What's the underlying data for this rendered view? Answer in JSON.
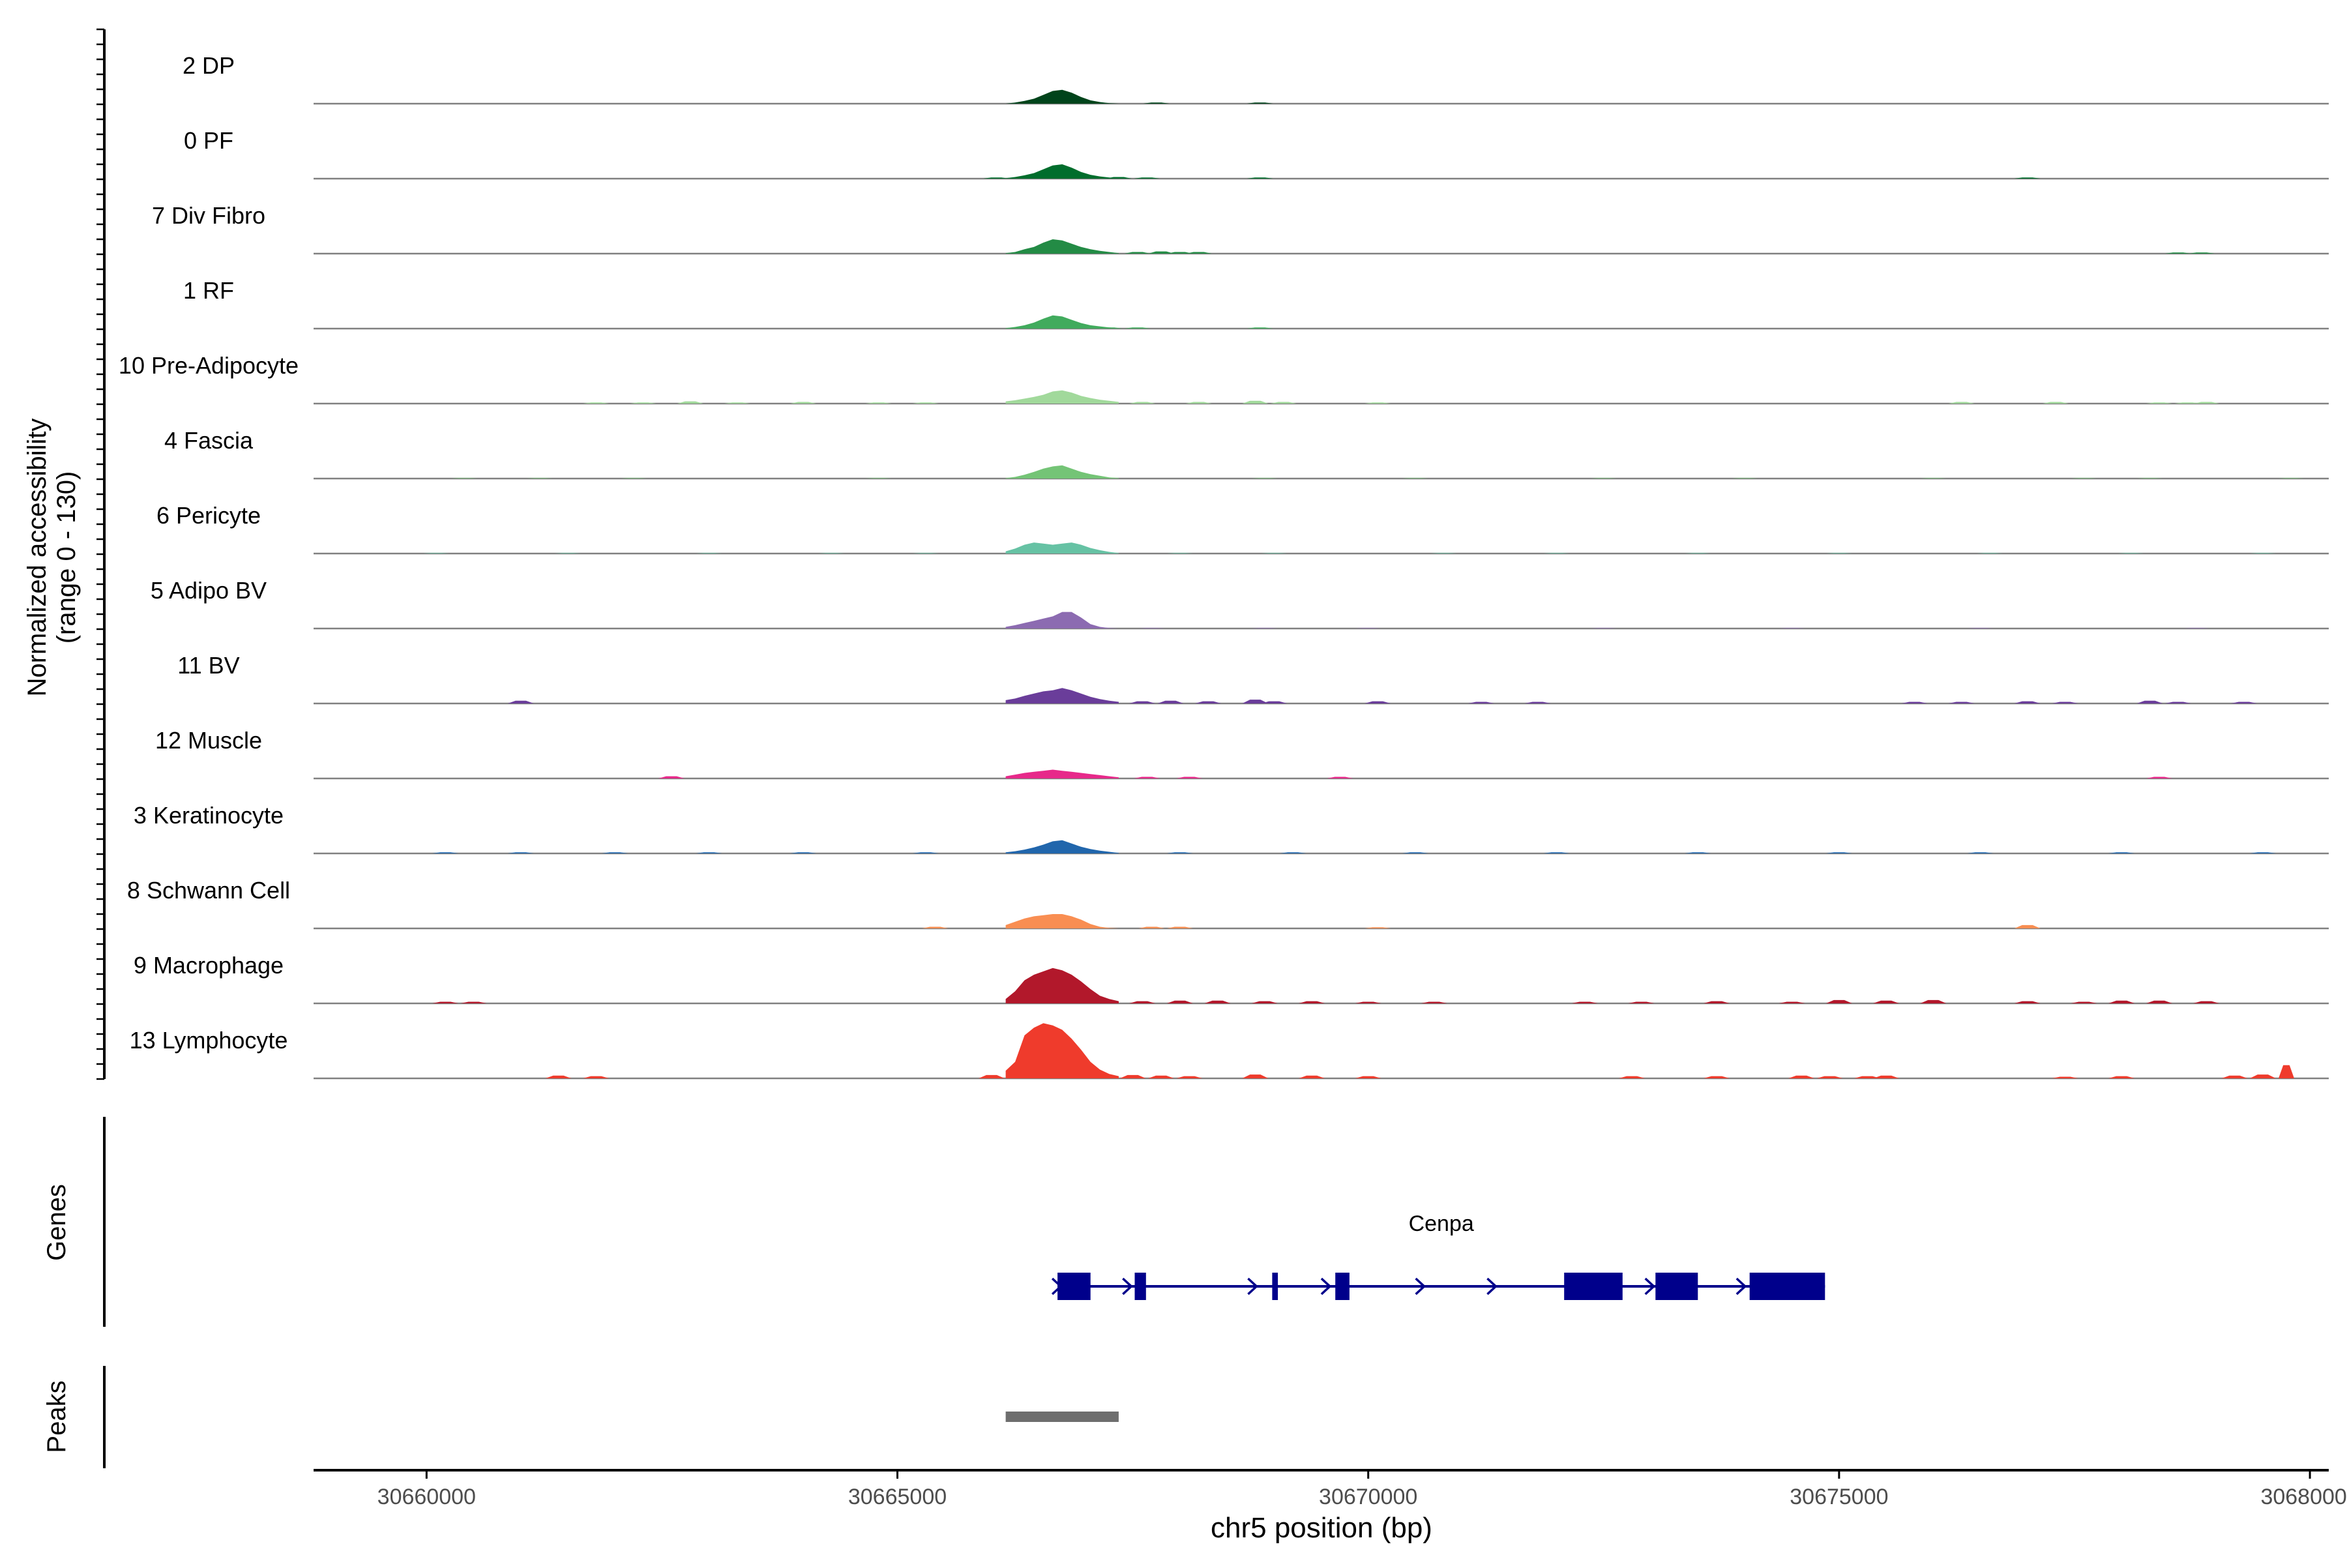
{
  "chart_data": {
    "type": "area",
    "subtype": "genome-coverage-tracks",
    "title": "",
    "xlabel": "chr5 position (bp)",
    "ylabel_line1": "Normalized accessibility",
    "ylabel_line2": "(range 0 - 130)",
    "ylim": [
      0,
      130
    ],
    "xlim": [
      30658800,
      30680200
    ],
    "x_ticks": [
      30660000,
      30665000,
      30670000,
      30675000,
      30680000
    ],
    "x_tick_labels": [
      "30660000",
      "30665000",
      "30670000",
      "30675000",
      "30680000"
    ],
    "grid": false,
    "legend": "none",
    "main_peak_x": [
      30666150,
      30666250,
      30666350,
      30666450,
      30666550,
      30666650,
      30666750,
      30666850,
      30666950,
      30667050,
      30667150,
      30667250,
      30667350
    ],
    "series": [
      {
        "name": "2 DP",
        "color": "#00441b",
        "y": [
          0,
          2,
          5,
          9,
          16,
          23,
          25,
          20,
          12,
          6,
          3,
          1,
          0
        ],
        "minor": [
          [
            30667750,
            2
          ],
          [
            30668850,
            2
          ]
        ]
      },
      {
        "name": "0 PF",
        "color": "#006d2c",
        "y": [
          1,
          3,
          6,
          10,
          17,
          24,
          26,
          20,
          12,
          7,
          4,
          2,
          1
        ],
        "minor": [
          [
            30666050,
            2
          ],
          [
            30667350,
            3
          ],
          [
            30667650,
            2
          ],
          [
            30668850,
            2
          ],
          [
            30677000,
            2
          ]
        ]
      },
      {
        "name": "7 Div Fibro",
        "color": "#238b45",
        "y": [
          1,
          3,
          8,
          12,
          20,
          26,
          24,
          18,
          12,
          8,
          5,
          3,
          1
        ],
        "minor": [
          [
            30667550,
            3
          ],
          [
            30667800,
            4
          ],
          [
            30668000,
            3
          ],
          [
            30668200,
            3
          ],
          [
            30678600,
            2
          ],
          [
            30678850,
            2
          ]
        ]
      },
      {
        "name": "1 RF",
        "color": "#41ab5d",
        "y": [
          1,
          3,
          6,
          11,
          18,
          24,
          22,
          16,
          10,
          6,
          4,
          2,
          1
        ],
        "minor": [
          [
            30667250,
            2
          ],
          [
            30667550,
            2
          ],
          [
            30668850,
            2
          ]
        ]
      },
      {
        "name": "10 Pre-Adipocyte",
        "color": "#a1d99b",
        "y": [
          4,
          6,
          9,
          12,
          16,
          22,
          24,
          20,
          14,
          10,
          7,
          5,
          3
        ],
        "minor": [
          [
            30661800,
            2
          ],
          [
            30662300,
            2
          ],
          [
            30662800,
            4
          ],
          [
            30663300,
            2
          ],
          [
            30664000,
            3
          ],
          [
            30664800,
            2
          ],
          [
            30665300,
            2
          ],
          [
            30667600,
            3
          ],
          [
            30668200,
            3
          ],
          [
            30668800,
            5
          ],
          [
            30669100,
            3
          ],
          [
            30670100,
            2
          ],
          [
            30676300,
            3
          ],
          [
            30677300,
            3
          ],
          [
            30678400,
            2
          ],
          [
            30678700,
            2
          ],
          [
            30678900,
            3
          ]
        ]
      },
      {
        "name": "4 Fascia",
        "color": "#74c476",
        "y": [
          1,
          3,
          7,
          12,
          18,
          22,
          24,
          18,
          12,
          8,
          5,
          2,
          1
        ],
        "minor": [
          [
            30660400,
            1
          ],
          [
            30661200,
            1
          ],
          [
            30662200,
            1
          ],
          [
            30664800,
            1
          ],
          [
            30668900,
            1
          ],
          [
            30670500,
            1
          ],
          [
            30672500,
            1
          ],
          [
            30674000,
            1
          ],
          [
            30676000,
            1
          ],
          [
            30677600,
            1
          ],
          [
            30678300,
            1
          ],
          [
            30679800,
            1
          ]
        ]
      },
      {
        "name": "6 Pericyte",
        "color": "#66c2a4",
        "y": [
          4,
          9,
          16,
          20,
          18,
          16,
          18,
          20,
          16,
          10,
          6,
          3,
          1
        ],
        "minor": [
          [
            30660100,
            1
          ],
          [
            30661500,
            1
          ],
          [
            30663000,
            1
          ],
          [
            30664300,
            1
          ],
          [
            30665300,
            1
          ],
          [
            30668000,
            1
          ],
          [
            30669000,
            1
          ],
          [
            30670800,
            1
          ],
          [
            30672000,
            1
          ],
          [
            30673500,
            1
          ],
          [
            30675000,
            1
          ],
          [
            30676600,
            1
          ],
          [
            30678100,
            1
          ],
          [
            30679500,
            1
          ]
        ]
      },
      {
        "name": "5 Adipo BV",
        "color": "#8c6bb1",
        "y": [
          3,
          6,
          10,
          14,
          18,
          22,
          30,
          30,
          20,
          8,
          3,
          1,
          0
        ],
        "minor": [
          [
            30667700,
            1
          ],
          [
            30668900,
            1
          ],
          [
            30670000,
            1
          ],
          [
            30672500,
            1
          ],
          [
            30674500,
            1
          ],
          [
            30676500,
            1
          ],
          [
            30678800,
            1
          ]
        ]
      },
      {
        "name": "11 BV",
        "color": "#6a3d9a",
        "y": [
          6,
          9,
          14,
          18,
          22,
          24,
          28,
          24,
          18,
          12,
          8,
          5,
          3
        ],
        "minor": [
          [
            30661000,
            5
          ],
          [
            30667600,
            4
          ],
          [
            30667900,
            5
          ],
          [
            30668300,
            4
          ],
          [
            30668800,
            7
          ],
          [
            30669000,
            4
          ],
          [
            30670100,
            4
          ],
          [
            30671200,
            3
          ],
          [
            30671800,
            3
          ],
          [
            30675800,
            3
          ],
          [
            30676300,
            3
          ],
          [
            30677000,
            4
          ],
          [
            30677400,
            3
          ],
          [
            30678300,
            5
          ],
          [
            30678600,
            3
          ],
          [
            30679300,
            3
          ]
        ]
      },
      {
        "name": "12 Muscle",
        "color": "#e7298a",
        "y": [
          4,
          7,
          10,
          12,
          14,
          16,
          14,
          12,
          10,
          8,
          6,
          4,
          2
        ],
        "minor": [
          [
            30662600,
            4
          ],
          [
            30667650,
            3
          ],
          [
            30668100,
            3
          ],
          [
            30669700,
            3
          ],
          [
            30678400,
            3
          ]
        ]
      },
      {
        "name": "3 Keratinocyte",
        "color": "#2166ac",
        "y": [
          2,
          4,
          7,
          11,
          16,
          22,
          24,
          18,
          12,
          8,
          5,
          3,
          1
        ],
        "minor": [
          [
            30660200,
            2
          ],
          [
            30661000,
            2
          ],
          [
            30662000,
            2
          ],
          [
            30663000,
            2
          ],
          [
            30664000,
            2
          ],
          [
            30665300,
            2
          ],
          [
            30668000,
            2
          ],
          [
            30669200,
            2
          ],
          [
            30670500,
            2
          ],
          [
            30672000,
            2
          ],
          [
            30673500,
            2
          ],
          [
            30675000,
            2
          ],
          [
            30676500,
            2
          ],
          [
            30678000,
            2
          ],
          [
            30679500,
            2
          ]
        ]
      },
      {
        "name": "8 Schwann Cell",
        "color": "#f98e52",
        "y": [
          6,
          12,
          18,
          22,
          24,
          26,
          26,
          22,
          16,
          8,
          3,
          1,
          0
        ],
        "minor": [
          [
            30665400,
            3
          ],
          [
            30667700,
            3
          ],
          [
            30668000,
            3
          ],
          [
            30670100,
            2
          ],
          [
            30677000,
            6
          ]
        ]
      },
      {
        "name": "9 Macrophage",
        "color": "#b2182b",
        "y": [
          8,
          22,
          42,
          52,
          58,
          64,
          60,
          52,
          40,
          26,
          14,
          8,
          4
        ],
        "minor": [
          [
            30660200,
            3
          ],
          [
            30660500,
            3
          ],
          [
            30667600,
            4
          ],
          [
            30668000,
            5
          ],
          [
            30668400,
            5
          ],
          [
            30668900,
            4
          ],
          [
            30669400,
            4
          ],
          [
            30670000,
            3
          ],
          [
            30670700,
            3
          ],
          [
            30672300,
            3
          ],
          [
            30672900,
            3
          ],
          [
            30673700,
            4
          ],
          [
            30674500,
            3
          ],
          [
            30675000,
            6
          ],
          [
            30675500,
            5
          ],
          [
            30676000,
            6
          ],
          [
            30677000,
            4
          ],
          [
            30677600,
            3
          ],
          [
            30678000,
            5
          ],
          [
            30678400,
            5
          ],
          [
            30678900,
            4
          ]
        ]
      },
      {
        "name": "13 Lymphocyte",
        "color": "#ef3b2c",
        "y": [
          14,
          30,
          78,
          92,
          100,
          96,
          88,
          72,
          52,
          30,
          16,
          8,
          4
        ],
        "minor": [
          [
            30661400,
            5
          ],
          [
            30661800,
            4
          ],
          [
            30666000,
            6
          ],
          [
            30667500,
            6
          ],
          [
            30667800,
            5
          ],
          [
            30668100,
            4
          ],
          [
            30668800,
            7
          ],
          [
            30669400,
            5
          ],
          [
            30670000,
            4
          ],
          [
            30672800,
            4
          ],
          [
            30673700,
            4
          ],
          [
            30674600,
            5
          ],
          [
            30674900,
            4
          ],
          [
            30675300,
            4
          ],
          [
            30675500,
            5
          ],
          [
            30677400,
            3
          ],
          [
            30678000,
            4
          ],
          [
            30679200,
            5
          ],
          [
            30679500,
            7
          ],
          [
            30679750,
            24
          ]
        ]
      }
    ],
    "genes_label": "Genes",
    "peaks_label": "Peaks",
    "gene": {
      "name": "Cenpa",
      "strand": "+",
      "start": 30666700,
      "end": 30674850,
      "exons": [
        [
          30666700,
          30667050
        ],
        [
          30667520,
          30667640
        ],
        [
          30668980,
          30669040
        ],
        [
          30669650,
          30669800
        ],
        [
          30672080,
          30672700
        ],
        [
          30673050,
          30673500
        ],
        [
          30674050,
          30674850
        ]
      ],
      "color": "#00008b"
    },
    "peaks": [
      {
        "start": 30666150,
        "end": 30667350,
        "color": "#6e6e6e"
      }
    ]
  }
}
